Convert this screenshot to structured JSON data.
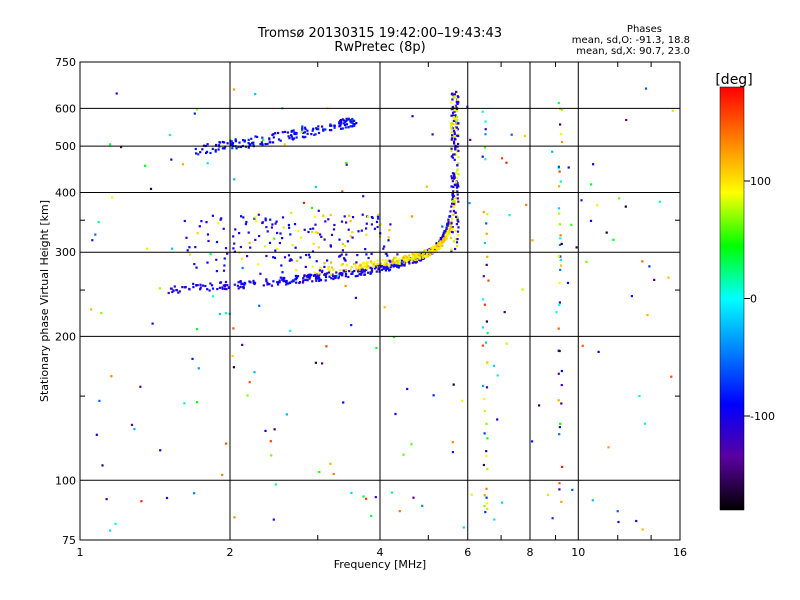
{
  "header": {
    "title_line1": "Tromsø 20130315 19:42:00–19:43:43",
    "title_line2": "RwPretec (8p)"
  },
  "phases_box": {
    "heading": "Phases",
    "line1": "mean, sd,O: -91.3, 18.8",
    "line2": "mean, sd,X:  90.7, 23.0"
  },
  "colorbar": {
    "label": "[deg]",
    "ticks": [
      "100",
      "0",
      "-100"
    ],
    "range": [
      -180,
      180
    ],
    "colormap": [
      "#000000",
      "#5a00a0",
      "#0000ff",
      "#0080ff",
      "#00ffff",
      "#00ff00",
      "#ffff00",
      "#ff8000",
      "#ff0000"
    ]
  },
  "chart_data": {
    "type": "scatter",
    "title": "Tromsø 20130315 19:42:00–19:43:43",
    "subtitle": "RwPretec (8p)",
    "xlabel": "Frequency [MHz]",
    "ylabel": "Stationary phase Virtual Height [km]",
    "x_scale": "log",
    "y_scale": "log",
    "xlim": [
      1,
      16
    ],
    "ylim": [
      75,
      750
    ],
    "x_ticks": [
      "1",
      "2",
      "4",
      "6",
      "8",
      "10",
      "16"
    ],
    "x_tick_values": [
      1,
      2,
      4,
      6,
      8,
      10,
      16
    ],
    "y_ticks": [
      "75",
      "100",
      "200",
      "300",
      "400",
      "500",
      "600",
      "750"
    ],
    "y_tick_values": [
      75,
      100,
      200,
      300,
      400,
      500,
      600,
      750
    ],
    "grid": true,
    "traces": [
      {
        "mode": "O",
        "color_phase_deg": -100,
        "f_start": 1.5,
        "f_end": 5.7,
        "h_min": 248,
        "shape": "F2-O trace rising to cusp"
      },
      {
        "mode": "X",
        "color_phase_deg": 100,
        "f_start": 2.9,
        "f_end": 5.75,
        "h_min": 270,
        "shape": "F2-X trace rising to cusp"
      },
      {
        "mode": "O-multi",
        "color_phase_deg": -90,
        "f_start": 1.7,
        "f_end": 3.6,
        "h_min": 490,
        "shape": "second hop"
      }
    ]
  }
}
